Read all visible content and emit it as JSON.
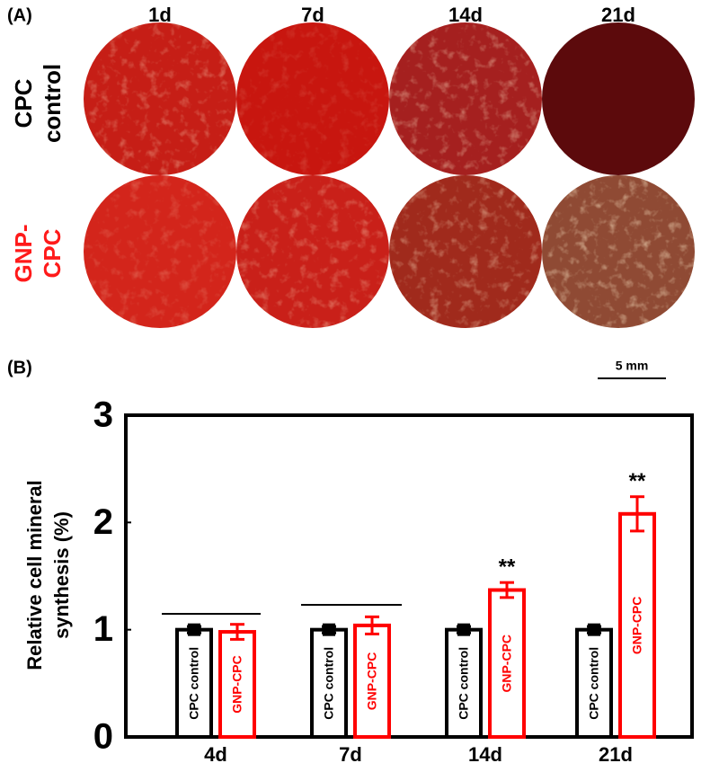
{
  "panel_a": {
    "label": "(A)",
    "columns": [
      "1d",
      "7d",
      "14d",
      "21d"
    ],
    "rows": [
      [
        "CPC",
        "control"
      ],
      [
        "GNP-",
        "CPC"
      ]
    ],
    "scale_bar": "5 mm"
  },
  "chart_data": {
    "type": "bar",
    "panel_label": "(B)",
    "ylabel": [
      "Relative cell mineral",
      "synthesis (%)"
    ],
    "categories": [
      "4d",
      "7d",
      "14d",
      "21d"
    ],
    "series": [
      {
        "name": "CPC control",
        "color": "#000000",
        "values": [
          1.0,
          1.0,
          1.0,
          1.0
        ],
        "errors": [
          0.03,
          0.03,
          0.03,
          0.03
        ],
        "annotations": [
          null,
          null,
          null,
          null
        ]
      },
      {
        "name": "GNP-CPC",
        "color": "#ff0000",
        "values": [
          0.98,
          1.04,
          1.37,
          2.08
        ],
        "errors": [
          0.07,
          0.08,
          0.07,
          0.16
        ],
        "annotations": [
          null,
          null,
          "**",
          "**"
        ]
      }
    ],
    "ylim": [
      0,
      3
    ],
    "yticks": [
      0,
      1,
      2,
      3
    ]
  }
}
